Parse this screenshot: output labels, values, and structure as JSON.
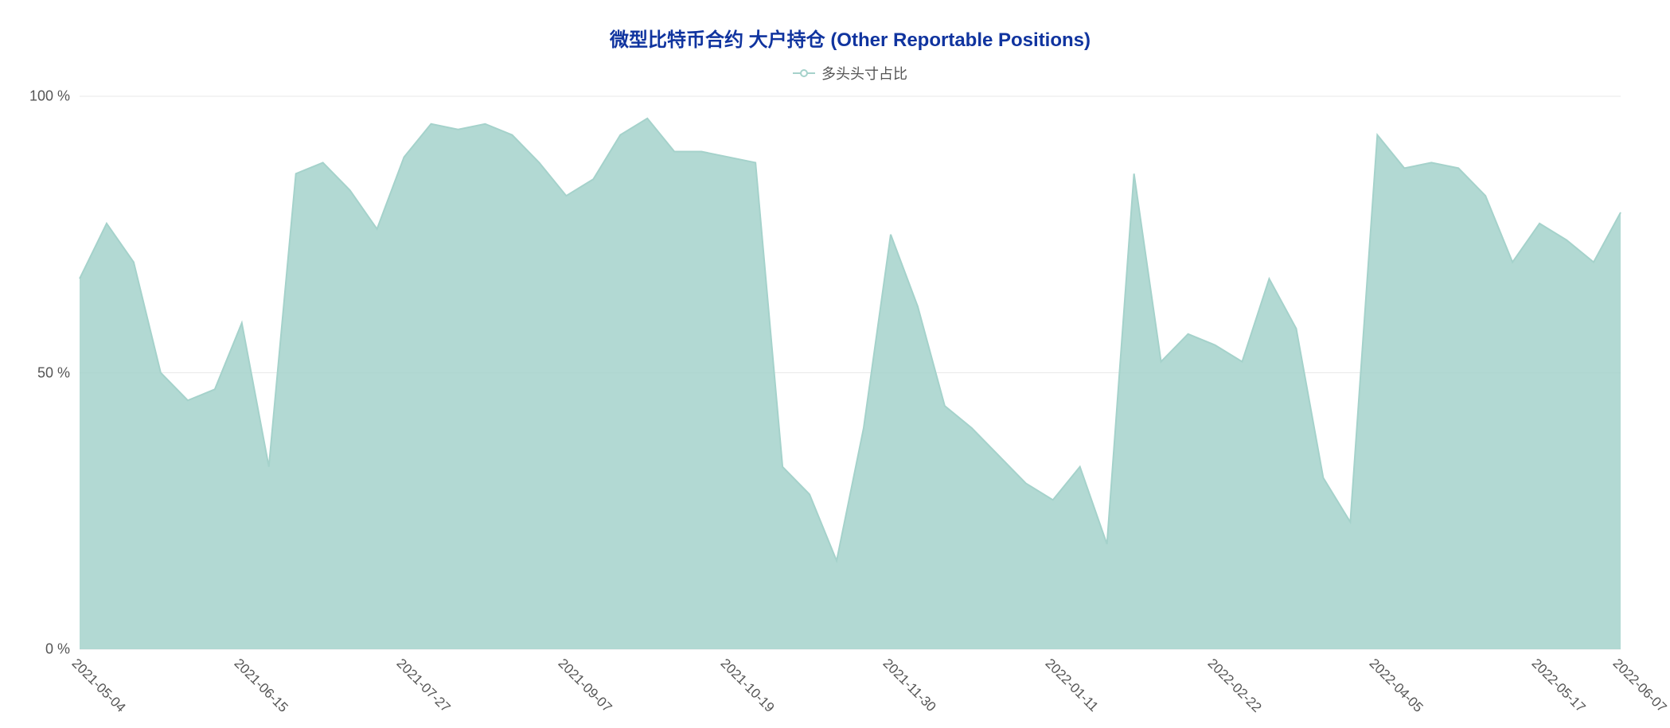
{
  "chart": {
    "type": "area",
    "title": "微型比特币合约 大户持仓 (Other Reportable Positions)",
    "title_color": "#10349f",
    "title_fontsize": 24,
    "legend": {
      "label": "多头头寸占比",
      "color": "#a5d2cb",
      "text_color": "#555555",
      "fontsize": 18
    },
    "series_color": "#a5d2cb",
    "series_fill_opacity": 0.85,
    "line_width": 2,
    "background_color": "#ffffff",
    "grid_color": "#e9e9e9",
    "grid_width": 1,
    "ylim": [
      0,
      100
    ],
    "yticks": [
      0,
      50,
      100
    ],
    "ytick_suffix": " %",
    "ylabel_fontsize": 18,
    "ylabel_color": "#555555",
    "xticks": [
      {
        "index": 0,
        "label": "2021-05-04"
      },
      {
        "index": 6,
        "label": "2021-06-15"
      },
      {
        "index": 12,
        "label": "2021-07-27"
      },
      {
        "index": 18,
        "label": "2021-09-07"
      },
      {
        "index": 24,
        "label": "2021-10-19"
      },
      {
        "index": 30,
        "label": "2021-11-30"
      },
      {
        "index": 36,
        "label": "2022-01-11"
      },
      {
        "index": 42,
        "label": "2022-02-22"
      },
      {
        "index": 48,
        "label": "2022-04-05"
      },
      {
        "index": 54,
        "label": "2022-05-17"
      },
      {
        "index": 57,
        "label": "2022-06-07"
      }
    ],
    "xlabel_fontsize": 17,
    "xlabel_color": "#555555",
    "xlabel_rotation": 45,
    "values": [
      67,
      77,
      70,
      50,
      45,
      47,
      59,
      33,
      86,
      88,
      83,
      76,
      89,
      95,
      94,
      95,
      93,
      88,
      82,
      85,
      93,
      96,
      90,
      90,
      89,
      88,
      33,
      28,
      16,
      40,
      75,
      62,
      44,
      40,
      35,
      30,
      27,
      33,
      19,
      86,
      52,
      57,
      55,
      52,
      67,
      58,
      31,
      23,
      93,
      87,
      88,
      87,
      82,
      70,
      77,
      74,
      70,
      79
    ]
  }
}
